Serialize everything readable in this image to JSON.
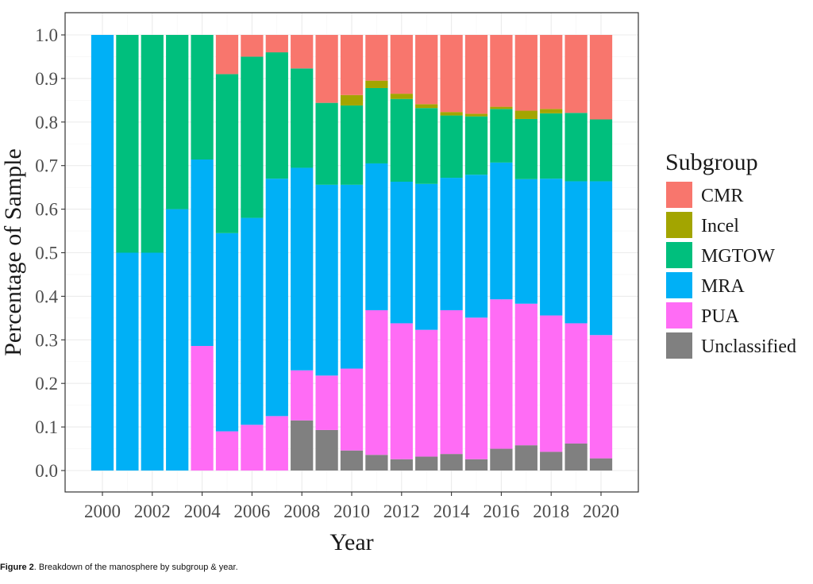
{
  "chart_data": {
    "type": "bar",
    "stacked": true,
    "title": "",
    "xlabel": "Year",
    "ylabel": "Percentage of Sample",
    "ylim": [
      0,
      1
    ],
    "yticks": [
      "0.0",
      "0.1",
      "0.2",
      "0.3",
      "0.4",
      "0.5",
      "0.6",
      "0.7",
      "0.8",
      "0.9",
      "1.0"
    ],
    "xticks": [
      "2000",
      "2002",
      "2004",
      "2006",
      "2008",
      "2010",
      "2012",
      "2014",
      "2016",
      "2018",
      "2020"
    ],
    "grid": true,
    "legend": {
      "title": "Subgroup",
      "position": "right"
    },
    "categories": [
      "2000",
      "2001",
      "2002",
      "2003",
      "2004",
      "2005",
      "2006",
      "2007",
      "2008",
      "2009",
      "2010",
      "2011",
      "2012",
      "2013",
      "2014",
      "2015",
      "2016",
      "2017",
      "2018",
      "2019",
      "2020"
    ],
    "series": [
      {
        "name": "Unclassified",
        "color": "#808080",
        "values": [
          0,
          0,
          0,
          0,
          0,
          0,
          0,
          0,
          0.115,
          0.093,
          0.046,
          0.036,
          0.026,
          0.032,
          0.038,
          0.026,
          0.05,
          0.058,
          0.043,
          0.062,
          0.028
        ]
      },
      {
        "name": "PUA",
        "color": "#FF6CF5",
        "values": [
          0,
          0,
          0,
          0,
          0.286,
          0.09,
          0.105,
          0.125,
          0.115,
          0.125,
          0.188,
          0.332,
          0.312,
          0.291,
          0.33,
          0.325,
          0.343,
          0.325,
          0.313,
          0.276,
          0.283
        ]
      },
      {
        "name": "MRA",
        "color": "#00B0F6",
        "values": [
          1.0,
          0.5,
          0.5,
          0.6,
          0.428,
          0.455,
          0.475,
          0.545,
          0.465,
          0.438,
          0.422,
          0.337,
          0.325,
          0.335,
          0.304,
          0.328,
          0.314,
          0.286,
          0.314,
          0.326,
          0.353
        ]
      },
      {
        "name": "MGTOW",
        "color": "#00BF7D",
        "values": [
          0,
          0.5,
          0.5,
          0.4,
          0.286,
          0.365,
          0.37,
          0.29,
          0.228,
          0.188,
          0.182,
          0.173,
          0.19,
          0.174,
          0.143,
          0.134,
          0.123,
          0.138,
          0.15,
          0.157,
          0.142
        ]
      },
      {
        "name": "Incel",
        "color": "#A3A500",
        "values": [
          0,
          0,
          0,
          0,
          0,
          0,
          0,
          0,
          0,
          0,
          0.024,
          0.017,
          0.012,
          0.009,
          0.008,
          0.006,
          0.005,
          0.019,
          0.01,
          0,
          0
        ]
      },
      {
        "name": "CMR",
        "color": "#F8766D",
        "values": [
          0,
          0,
          0,
          0,
          0,
          0.09,
          0.05,
          0.04,
          0.077,
          0.156,
          0.138,
          0.105,
          0.135,
          0.159,
          0.177,
          0.181,
          0.165,
          0.174,
          0.17,
          0.179,
          0.194
        ]
      }
    ],
    "legend_order": [
      "CMR",
      "Incel",
      "MGTOW",
      "MRA",
      "PUA",
      "Unclassified"
    ]
  },
  "caption": {
    "label": "Figure 2",
    "text": ". Breakdown of the manosphere by subgroup & year."
  }
}
